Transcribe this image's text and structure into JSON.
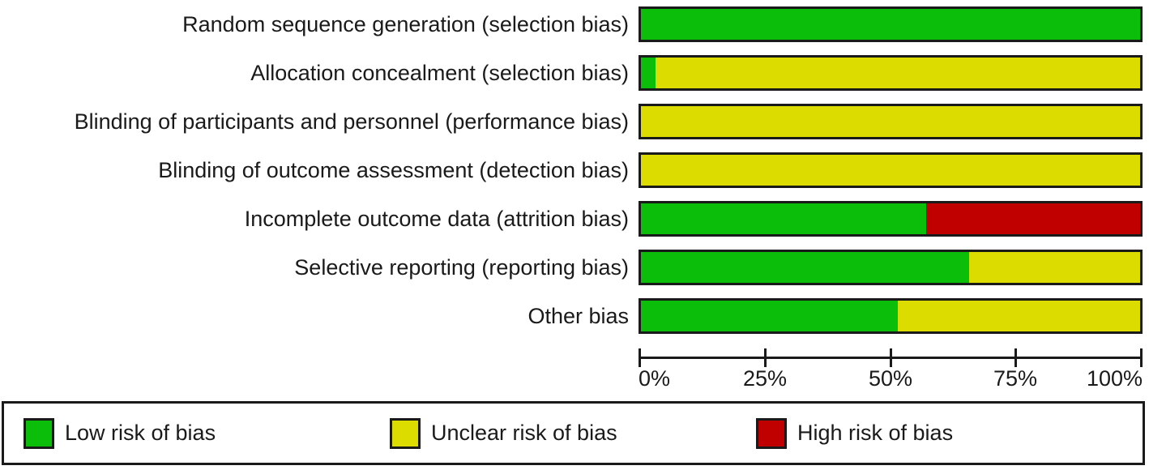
{
  "chart_data": {
    "type": "bar",
    "variant": "horizontal-stacked-percent",
    "categories": [
      "Random sequence generation (selection bias)",
      "Allocation concealment (selection bias)",
      "Blinding of participants and personnel (performance bias)",
      "Blinding of outcome assessment (detection bias)",
      "Incomplete outcome data (attrition bias)",
      "Selective reporting (reporting bias)",
      "Other bias"
    ],
    "series": [
      {
        "name": "Low risk of bias",
        "color": "#0abe0a",
        "values": [
          100,
          2.9,
          0,
          0,
          57.1,
          65.7,
          51.4
        ]
      },
      {
        "name": "Unclear risk of bias",
        "color": "#dcdc00",
        "values": [
          0,
          97.1,
          100,
          100,
          0,
          34.3,
          48.6
        ]
      },
      {
        "name": "High risk of bias",
        "color": "#c00000",
        "values": [
          0,
          0,
          0,
          0,
          42.9,
          0,
          0
        ]
      }
    ],
    "x_ticks": [
      {
        "value": 0,
        "label": "0%"
      },
      {
        "value": 25,
        "label": "25%"
      },
      {
        "value": 50,
        "label": "50%"
      },
      {
        "value": 75,
        "label": "75%"
      },
      {
        "value": 100,
        "label": "100%"
      }
    ],
    "xlim": [
      0,
      100
    ],
    "grid": false,
    "legend_position": "bottom",
    "legend": [
      "Low risk of bias",
      "Unclear risk of bias",
      "High risk of bias"
    ]
  },
  "colors": {
    "low_risk": "#0abe0a",
    "unclear_risk": "#dcdc00",
    "high_risk": "#c00000",
    "border": "#1a1a1a",
    "background": "#ffffff"
  }
}
